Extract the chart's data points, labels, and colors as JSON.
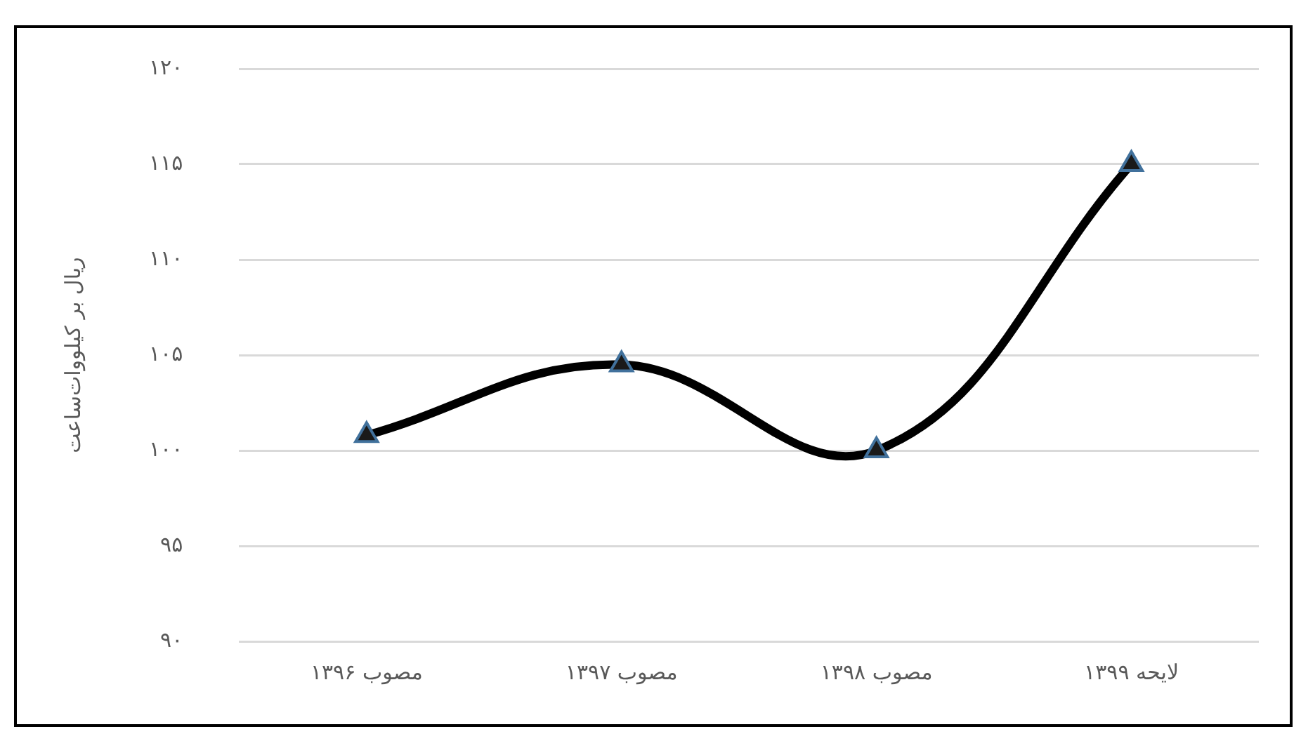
{
  "chart_data": {
    "type": "line",
    "ylabel": "ریال بر کیلووات‌ساعت",
    "categories": [
      "مصوب ۱۳۹۶",
      "مصوب ۱۳۹۷",
      "مصوب ۱۳۹۸",
      "لایحه ۱۳۹۹"
    ],
    "series": [
      {
        "color": "#000000",
        "values": [
          100.8,
          104.5,
          100.0,
          115.0
        ]
      }
    ],
    "ylim": [
      90,
      120
    ],
    "yticks": [
      {
        "value": 90,
        "label": "۹۰"
      },
      {
        "value": 95,
        "label": "۹۵"
      },
      {
        "value": 100,
        "label": "۱۰۰"
      },
      {
        "value": 105,
        "label": "۱۰۵"
      },
      {
        "value": 110,
        "label": "۱۱۰"
      },
      {
        "value": 115,
        "label": "۱۱۵"
      },
      {
        "value": 120,
        "label": "۱۲۰"
      }
    ],
    "grid": "y",
    "legend": false,
    "marker": "triangle",
    "line_style": "solid"
  }
}
